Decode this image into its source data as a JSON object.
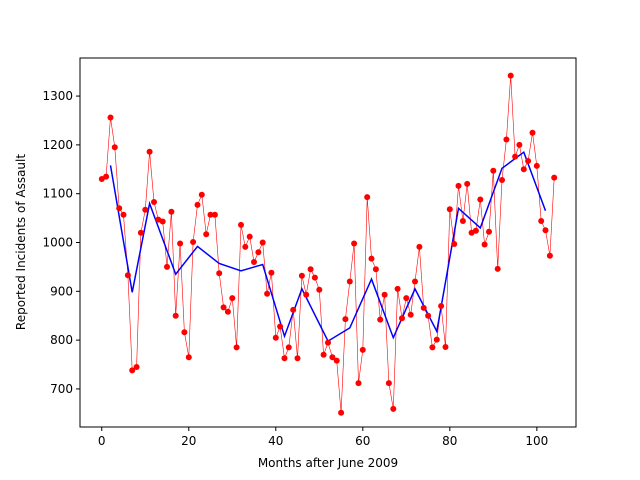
{
  "chart_data": {
    "type": "line",
    "title": "",
    "xlabel": "Months after June 2009",
    "ylabel": "Reported Incidents of Assault",
    "xlim": [
      -5,
      109
    ],
    "ylim": [
      622,
      1378
    ],
    "xticks": [
      0,
      20,
      40,
      60,
      80,
      100
    ],
    "yticks": [
      700,
      800,
      900,
      1000,
      1100,
      1200,
      1300
    ],
    "grid": false,
    "legend": "none",
    "series": [
      {
        "style": "thin red line with filled circle markers",
        "color": "#ff0000",
        "x": [
          0,
          1,
          2,
          3,
          4,
          5,
          6,
          7,
          8,
          9,
          10,
          11,
          12,
          13,
          14,
          15,
          16,
          17,
          18,
          19,
          20,
          21,
          22,
          23,
          24,
          25,
          26,
          27,
          28,
          29,
          30,
          31,
          32,
          33,
          34,
          35,
          36,
          37,
          38,
          39,
          40,
          41,
          42,
          43,
          44,
          45,
          46,
          47,
          48,
          49,
          50,
          51,
          52,
          53,
          54,
          55,
          56,
          57,
          58,
          59,
          60,
          61,
          62,
          63,
          64,
          65,
          66,
          67,
          68,
          69,
          70,
          71,
          72,
          73,
          74,
          75,
          76,
          77,
          78,
          79,
          80,
          81,
          82,
          83,
          84,
          85,
          86,
          87,
          88,
          89,
          90,
          91,
          92,
          93,
          94,
          95,
          96,
          97,
          98,
          99,
          100,
          101,
          102,
          103,
          104
        ],
        "values": [
          1130,
          1135,
          1256,
          1195,
          1070,
          1057,
          933,
          738,
          745,
          1020,
          1067,
          1186,
          1083,
          1047,
          1043,
          950,
          1063,
          850,
          998,
          816,
          765,
          1001,
          1077,
          1098,
          1017,
          1057,
          1057,
          937,
          867,
          858,
          886,
          785,
          1036,
          991,
          1012,
          960,
          980,
          1000,
          895,
          938,
          805,
          828,
          763,
          785,
          862,
          763,
          932,
          893,
          945,
          928,
          903,
          770,
          795,
          765,
          758,
          651,
          843,
          920,
          998,
          712,
          780,
          1093,
          967,
          945,
          842,
          893,
          712,
          659,
          905,
          845,
          886,
          852,
          920,
          991,
          866,
          850,
          785,
          801,
          870,
          786,
          1068,
          997,
          1116,
          1044,
          1120,
          1020,
          1024,
          1088,
          996,
          1022,
          1147,
          946,
          1128,
          1211,
          1342,
          1176,
          1200,
          1150,
          1167,
          1225,
          1157,
          1044,
          1025,
          973,
          1133
        ]
      },
      {
        "style": "solid blue line",
        "color": "#0000ff",
        "x": [
          2,
          7,
          11,
          17,
          22,
          27,
          32,
          37,
          42,
          46,
          52,
          57,
          62,
          67,
          72,
          77,
          82,
          87,
          92,
          97,
          102
        ],
        "values": [
          1158,
          898,
          1080,
          935,
          992,
          957,
          942,
          955,
          808,
          905,
          798,
          825,
          925,
          805,
          905,
          818,
          1070,
          1030,
          1152,
          1185,
          1065
        ]
      }
    ]
  }
}
